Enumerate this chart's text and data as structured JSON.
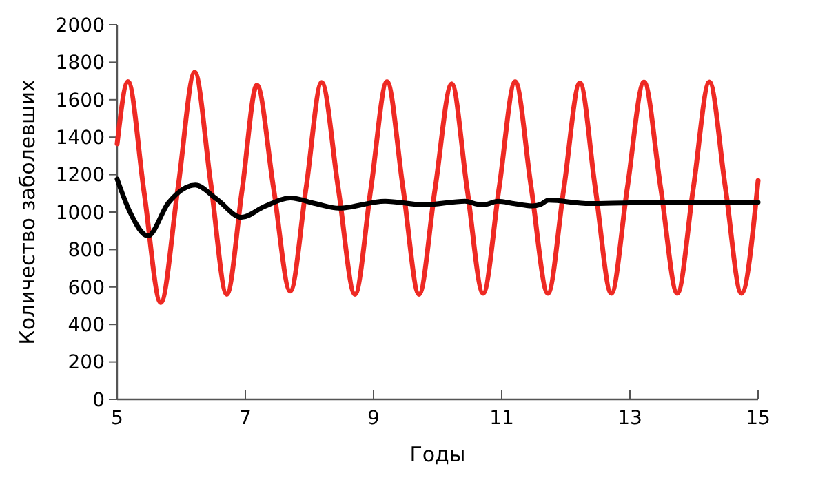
{
  "chart_data": {
    "type": "line",
    "xlabel": "Годы",
    "ylabel": "Количество заболевших",
    "xlim": [
      5,
      15
    ],
    "xticks": [
      5,
      7,
      9,
      11,
      13,
      15
    ],
    "ylim": [
      0,
      2000
    ],
    "yticks": [
      0,
      200,
      400,
      600,
      800,
      1000,
      1200,
      1400,
      1600,
      1800,
      2000
    ],
    "grid": false,
    "marker": "none",
    "line_style": "solid",
    "series": [
      {
        "color": "#ee2a24",
        "x": [
          5.0,
          5.17,
          5.42,
          5.68,
          5.95,
          6.21,
          6.46,
          6.71,
          6.95,
          7.18,
          7.44,
          7.7,
          7.95,
          8.19,
          8.45,
          8.71,
          8.96,
          9.21,
          9.46,
          9.71,
          9.96,
          10.22,
          10.46,
          10.71,
          10.96,
          11.21,
          11.46,
          11.72,
          11.97,
          12.22,
          12.46,
          12.71,
          12.96,
          13.22,
          13.48,
          13.74,
          13.99,
          14.24,
          14.49,
          14.74,
          15.0
        ],
        "values": [
          1365,
          1697,
          1107,
          517,
          1132,
          1747,
          1154,
          561,
          1120,
          1678,
          1128,
          578,
          1135,
          1692,
          1126,
          561,
          1129,
          1697,
          1129,
          561,
          1123,
          1685,
          1125,
          566,
          1131,
          1697,
          1131,
          566,
          1128,
          1690,
          1128,
          566,
          1130,
          1695,
          1130,
          566,
          1130,
          1695,
          1130,
          566,
          1168
        ]
      },
      {
        "color": "#000000",
        "x": [
          5.0,
          5.2,
          5.48,
          5.8,
          6.22,
          6.55,
          6.94,
          7.3,
          7.7,
          8.1,
          8.46,
          9.18,
          9.79,
          10.43,
          10.62,
          10.72,
          10.94,
          11.2,
          11.48,
          11.6,
          11.73,
          12.37,
          13,
          14,
          15
        ],
        "values": [
          1176,
          1000,
          873,
          1050,
          1144,
          1070,
          972,
          1030,
          1075,
          1045,
          1021,
          1058,
          1039,
          1058,
          1042,
          1039,
          1058,
          1045,
          1033,
          1040,
          1063,
          1046,
          1050,
          1052,
          1052
        ]
      }
    ]
  }
}
